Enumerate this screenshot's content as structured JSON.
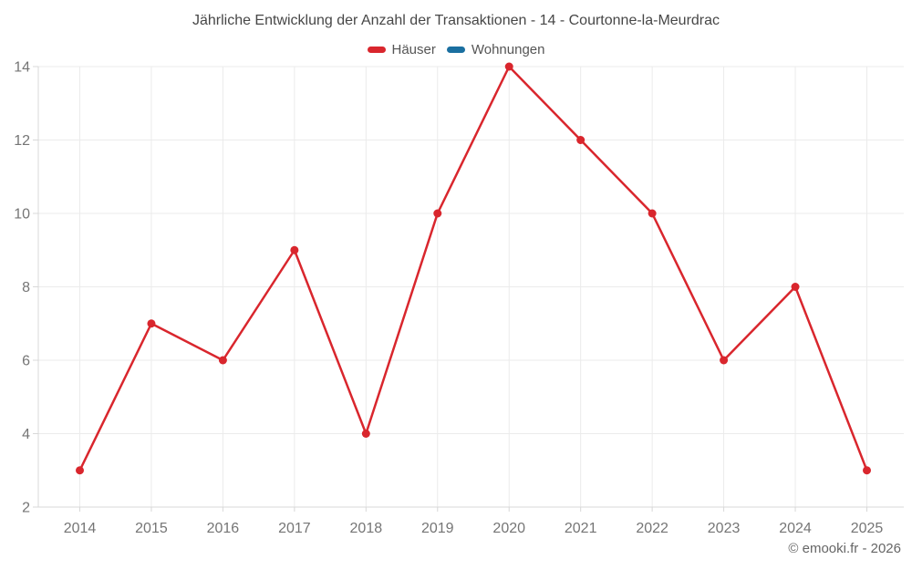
{
  "title": "Jährliche Entwicklung der Anzahl der Transaktionen - 14 - Courtonne-la-Meurdrac",
  "footer": "© emooki.fr - 2026",
  "colors": {
    "haeuser_red": "#d9262d",
    "wohnungen_blue": "#1a6fa0",
    "gridline": "#ebebeb",
    "axis": "#d8d8d8",
    "axis_label": "#757575",
    "title_text": "#474747",
    "legend_text": "#555555",
    "footer_text": "#666666"
  },
  "chart_data": {
    "type": "line",
    "title": "Jährliche Entwicklung der Anzahl der Transaktionen - 14 - Courtonne-la-Meurdrac",
    "categories": [
      "2014",
      "2015",
      "2016",
      "2017",
      "2018",
      "2019",
      "2020",
      "2021",
      "2022",
      "2023",
      "2024",
      "2025"
    ],
    "series": [
      {
        "name": "Häuser",
        "color": "#d9262d",
        "values": [
          3,
          7,
          6,
          9,
          4,
          10,
          14,
          12,
          10,
          6,
          8,
          3
        ]
      },
      {
        "name": "Wohnungen",
        "color": "#1a6fa0",
        "values": []
      }
    ],
    "xlabel": "",
    "ylabel": "",
    "ylim": [
      2,
      14
    ],
    "yticks": [
      2,
      4,
      6,
      8,
      10,
      12,
      14
    ],
    "grid": true,
    "legend_position": "top"
  }
}
